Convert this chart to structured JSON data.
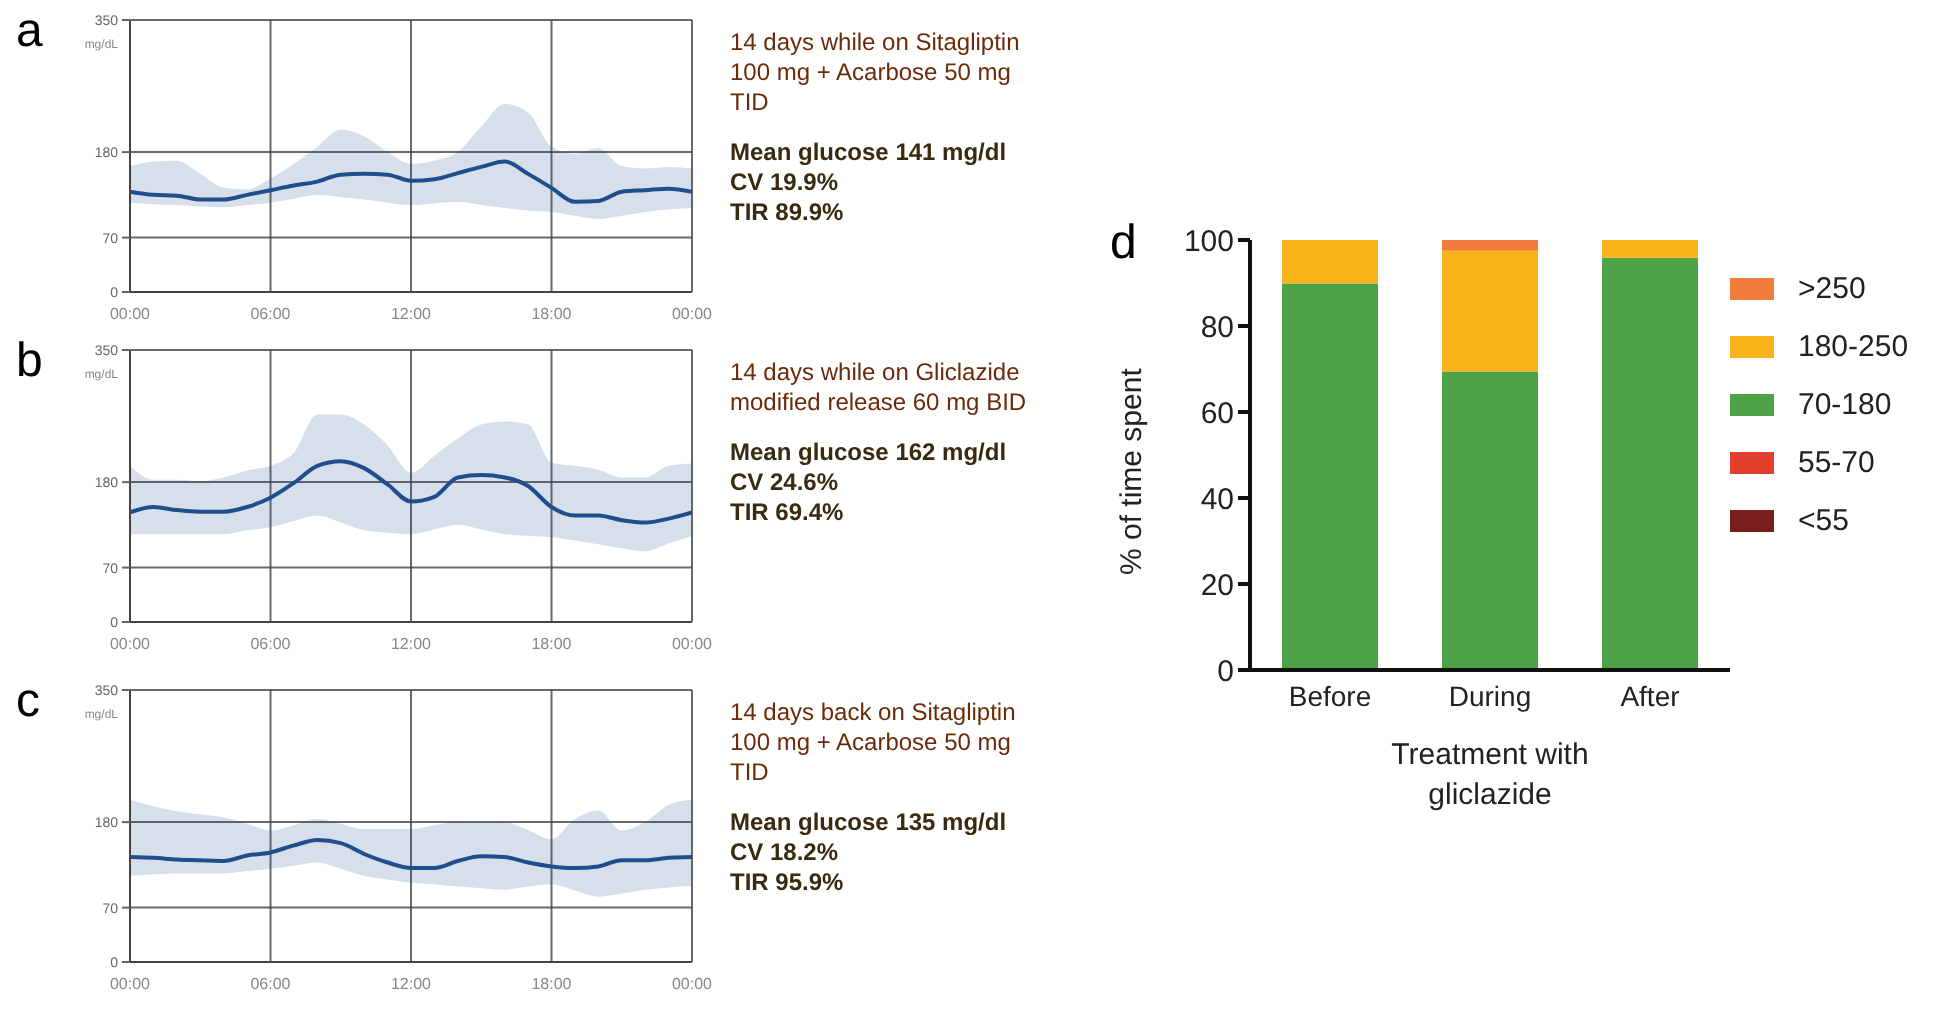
{
  "chart_data": [
    {
      "type": "line",
      "title": "a",
      "ylabel": "mg/dL",
      "annotations": [
        "14 days while on Sitagliptin 100 mg + Acarbose 50 mg TID",
        "Mean glucose 141 mg/dl",
        "CV 19.9%",
        "TIR 89.9%"
      ],
      "x": [
        0,
        1,
        2,
        3,
        4,
        5,
        6,
        7,
        8,
        9,
        10,
        11,
        12,
        13,
        14,
        15,
        16,
        17,
        18,
        19,
        20,
        21,
        22,
        23,
        24
      ],
      "xlim": [
        0,
        24
      ],
      "xticks": [
        {
          "value": 0,
          "label": "00:00"
        },
        {
          "value": 6,
          "label": "06:00"
        },
        {
          "value": 12,
          "label": "12:00"
        },
        {
          "value": 18,
          "label": "18:00"
        },
        {
          "value": 24,
          "label": "00:00"
        }
      ],
      "ylim": [
        0,
        350
      ],
      "yticks": [
        0,
        70,
        180,
        350
      ],
      "grid": true,
      "series": [
        {
          "color": "#1f4e8c",
          "values": [
            129,
            125,
            124,
            119,
            119,
            125,
            131,
            137,
            142,
            151,
            152,
            151,
            143,
            145,
            153,
            161,
            168,
            152,
            134,
            116,
            117,
            129,
            131,
            133,
            129
          ],
          "lower": [
            115,
            113,
            112,
            110,
            109,
            112,
            115,
            120,
            125,
            122,
            119,
            115,
            112,
            114,
            116,
            112,
            108,
            105,
            103,
            98,
            94,
            98,
            103,
            106,
            108
          ],
          "upper": [
            162,
            168,
            169,
            152,
            134,
            132,
            146,
            165,
            187,
            209,
            200,
            180,
            165,
            169,
            180,
            213,
            242,
            231,
            187,
            178,
            185,
            162,
            159,
            161,
            159
          ]
        }
      ]
    },
    {
      "type": "line",
      "title": "b",
      "ylabel": "mg/dL",
      "annotations": [
        "14 days while on Gliclazide modified release 60 mg BID",
        "Mean glucose 162 mg/dl",
        "CV 24.6%",
        "TIR 69.4%"
      ],
      "x": [
        0,
        1,
        2,
        3,
        4,
        5,
        6,
        7,
        8,
        9,
        10,
        11,
        12,
        13,
        14,
        15,
        16,
        17,
        18,
        19,
        20,
        21,
        22,
        23,
        24
      ],
      "xlim": [
        0,
        24
      ],
      "xticks": [
        {
          "value": 0,
          "label": "00:00"
        },
        {
          "value": 6,
          "label": "06:00"
        },
        {
          "value": 12,
          "label": "12:00"
        },
        {
          "value": 18,
          "label": "18:00"
        },
        {
          "value": 24,
          "label": "00:00"
        }
      ],
      "ylim": [
        0,
        350
      ],
      "yticks": [
        0,
        70,
        180,
        350
      ],
      "grid": true,
      "series": [
        {
          "color": "#1f4e8c",
          "values": [
            141,
            148,
            144,
            142,
            142,
            148,
            160,
            179,
            201,
            207,
            198,
            177,
            155,
            161,
            186,
            189,
            186,
            175,
            148,
            137,
            137,
            131,
            128,
            133,
            141
          ],
          "lower": [
            113,
            113,
            113,
            113,
            113,
            118,
            122,
            130,
            137,
            128,
            118,
            115,
            113,
            119,
            125,
            119,
            113,
            111,
            109,
            105,
            100,
            95,
            91,
            101,
            111
          ],
          "upper": [
            201,
            183,
            183,
            181,
            186,
            195,
            201,
            218,
            267,
            267,
            254,
            227,
            192,
            214,
            236,
            254,
            258,
            254,
            205,
            201,
            196,
            186,
            186,
            201,
            204
          ]
        }
      ]
    },
    {
      "type": "line",
      "title": "c",
      "ylabel": "mg/dL",
      "annotations": [
        "14 days back on Sitagliptin 100 mg + Acarbose 50 mg TID",
        "Mean glucose 135 mg/dl",
        "CV 18.2%",
        "TIR 95.9%"
      ],
      "x": [
        0,
        1,
        2,
        3,
        4,
        5,
        6,
        7,
        8,
        9,
        10,
        11,
        12,
        13,
        14,
        15,
        16,
        17,
        18,
        19,
        20,
        21,
        22,
        23,
        24
      ],
      "xlim": [
        0,
        24
      ],
      "xticks": [
        {
          "value": 0,
          "label": "00:00"
        },
        {
          "value": 6,
          "label": "06:00"
        },
        {
          "value": 12,
          "label": "12:00"
        },
        {
          "value": 18,
          "label": "18:00"
        },
        {
          "value": 24,
          "label": "00:00"
        }
      ],
      "ylim": [
        0,
        350
      ],
      "yticks": [
        0,
        70,
        180,
        350
      ],
      "grid": true,
      "series": [
        {
          "color": "#1f4e8c",
          "values": [
            135,
            134,
            132,
            131,
            130,
            137,
            141,
            150,
            157,
            153,
            139,
            128,
            121,
            121,
            130,
            136,
            135,
            128,
            123,
            121,
            123,
            131,
            131,
            134,
            135
          ],
          "lower": [
            111,
            113,
            114,
            114,
            114,
            117,
            120,
            124,
            128,
            120,
            111,
            106,
            102,
            100,
            97,
            95,
            93,
            97,
            100,
            92,
            84,
            88,
            93,
            96,
            98
          ],
          "upper": [
            209,
            200,
            194,
            190,
            186,
            178,
            169,
            176,
            184,
            178,
            171,
            171,
            171,
            176,
            180,
            180,
            180,
            170,
            158,
            184,
            195,
            169,
            180,
            202,
            209
          ]
        }
      ]
    },
    {
      "type": "bar",
      "title": "d",
      "xlabel": "Treatment with gliclazide",
      "ylabel": "% of time spent",
      "categories": [
        "Before",
        "During",
        "After"
      ],
      "stacked": true,
      "ylim": [
        0,
        100
      ],
      "yticks": [
        0,
        20,
        40,
        60,
        80,
        100
      ],
      "legend": "right",
      "series": [
        {
          "name": "<55",
          "color": "#7b1c1c",
          "values": [
            0,
            0,
            0
          ]
        },
        {
          "name": "55-70",
          "color": "#e0402c",
          "values": [
            0,
            0,
            0
          ]
        },
        {
          "name": "70-180",
          "color": "#4ea246",
          "values": [
            89.9,
            69.4,
            95.9
          ]
        },
        {
          "name": "180-250",
          "color": "#fbb31a",
          "values": [
            10.1,
            28.1,
            4.1
          ]
        },
        {
          "name": ">250",
          "color": "#f07b3a",
          "values": [
            0,
            2.5,
            0
          ]
        }
      ]
    }
  ]
}
